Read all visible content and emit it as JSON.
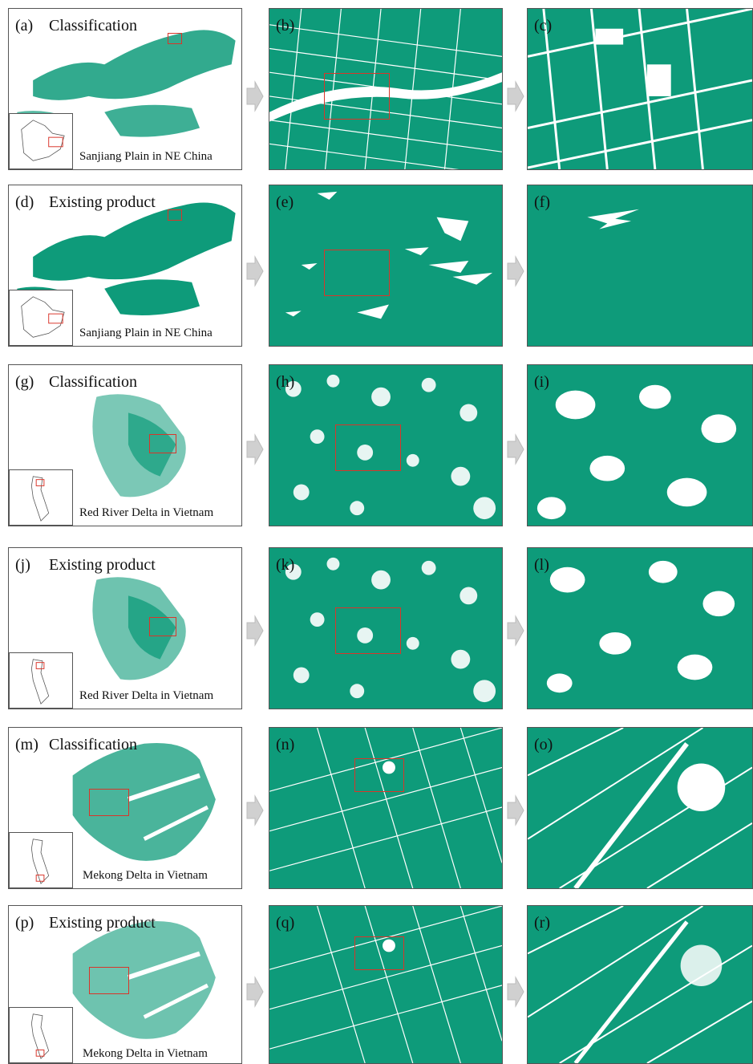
{
  "colors": {
    "paddy": "#0e9b7a",
    "frame": "#555555",
    "highlight": "#d9352a",
    "arrow": "#d0d0d0"
  },
  "rows": [
    {
      "overview": {
        "letter": "(a)",
        "title": "Classification",
        "region": "Sanjiang Plain in NE China"
      },
      "zoom1": {
        "letter": "(b)"
      },
      "zoom2": {
        "letter": "(c)"
      }
    },
    {
      "overview": {
        "letter": "(d)",
        "title": "Existing product",
        "region": "Sanjiang Plain in NE China"
      },
      "zoom1": {
        "letter": "(e)"
      },
      "zoom2": {
        "letter": "(f)"
      }
    },
    {
      "overview": {
        "letter": "(g)",
        "title": "Classification",
        "region": "Red River Delta in Vietnam"
      },
      "zoom1": {
        "letter": "(h)"
      },
      "zoom2": {
        "letter": "(i)"
      }
    },
    {
      "overview": {
        "letter": "(j)",
        "title": "Existing product",
        "region": "Red River Delta in Vietnam"
      },
      "zoom1": {
        "letter": "(k)"
      },
      "zoom2": {
        "letter": "(l)"
      }
    },
    {
      "overview": {
        "letter": "(m)",
        "title": "Classification",
        "region": "Mekong Delta in Vietnam"
      },
      "zoom1": {
        "letter": "(n)"
      },
      "zoom2": {
        "letter": "(o)"
      }
    },
    {
      "overview": {
        "letter": "(p)",
        "title": "Existing product",
        "region": "Mekong Delta in Vietnam"
      },
      "zoom1": {
        "letter": "(q)"
      },
      "zoom2": {
        "letter": "(r)"
      }
    }
  ]
}
